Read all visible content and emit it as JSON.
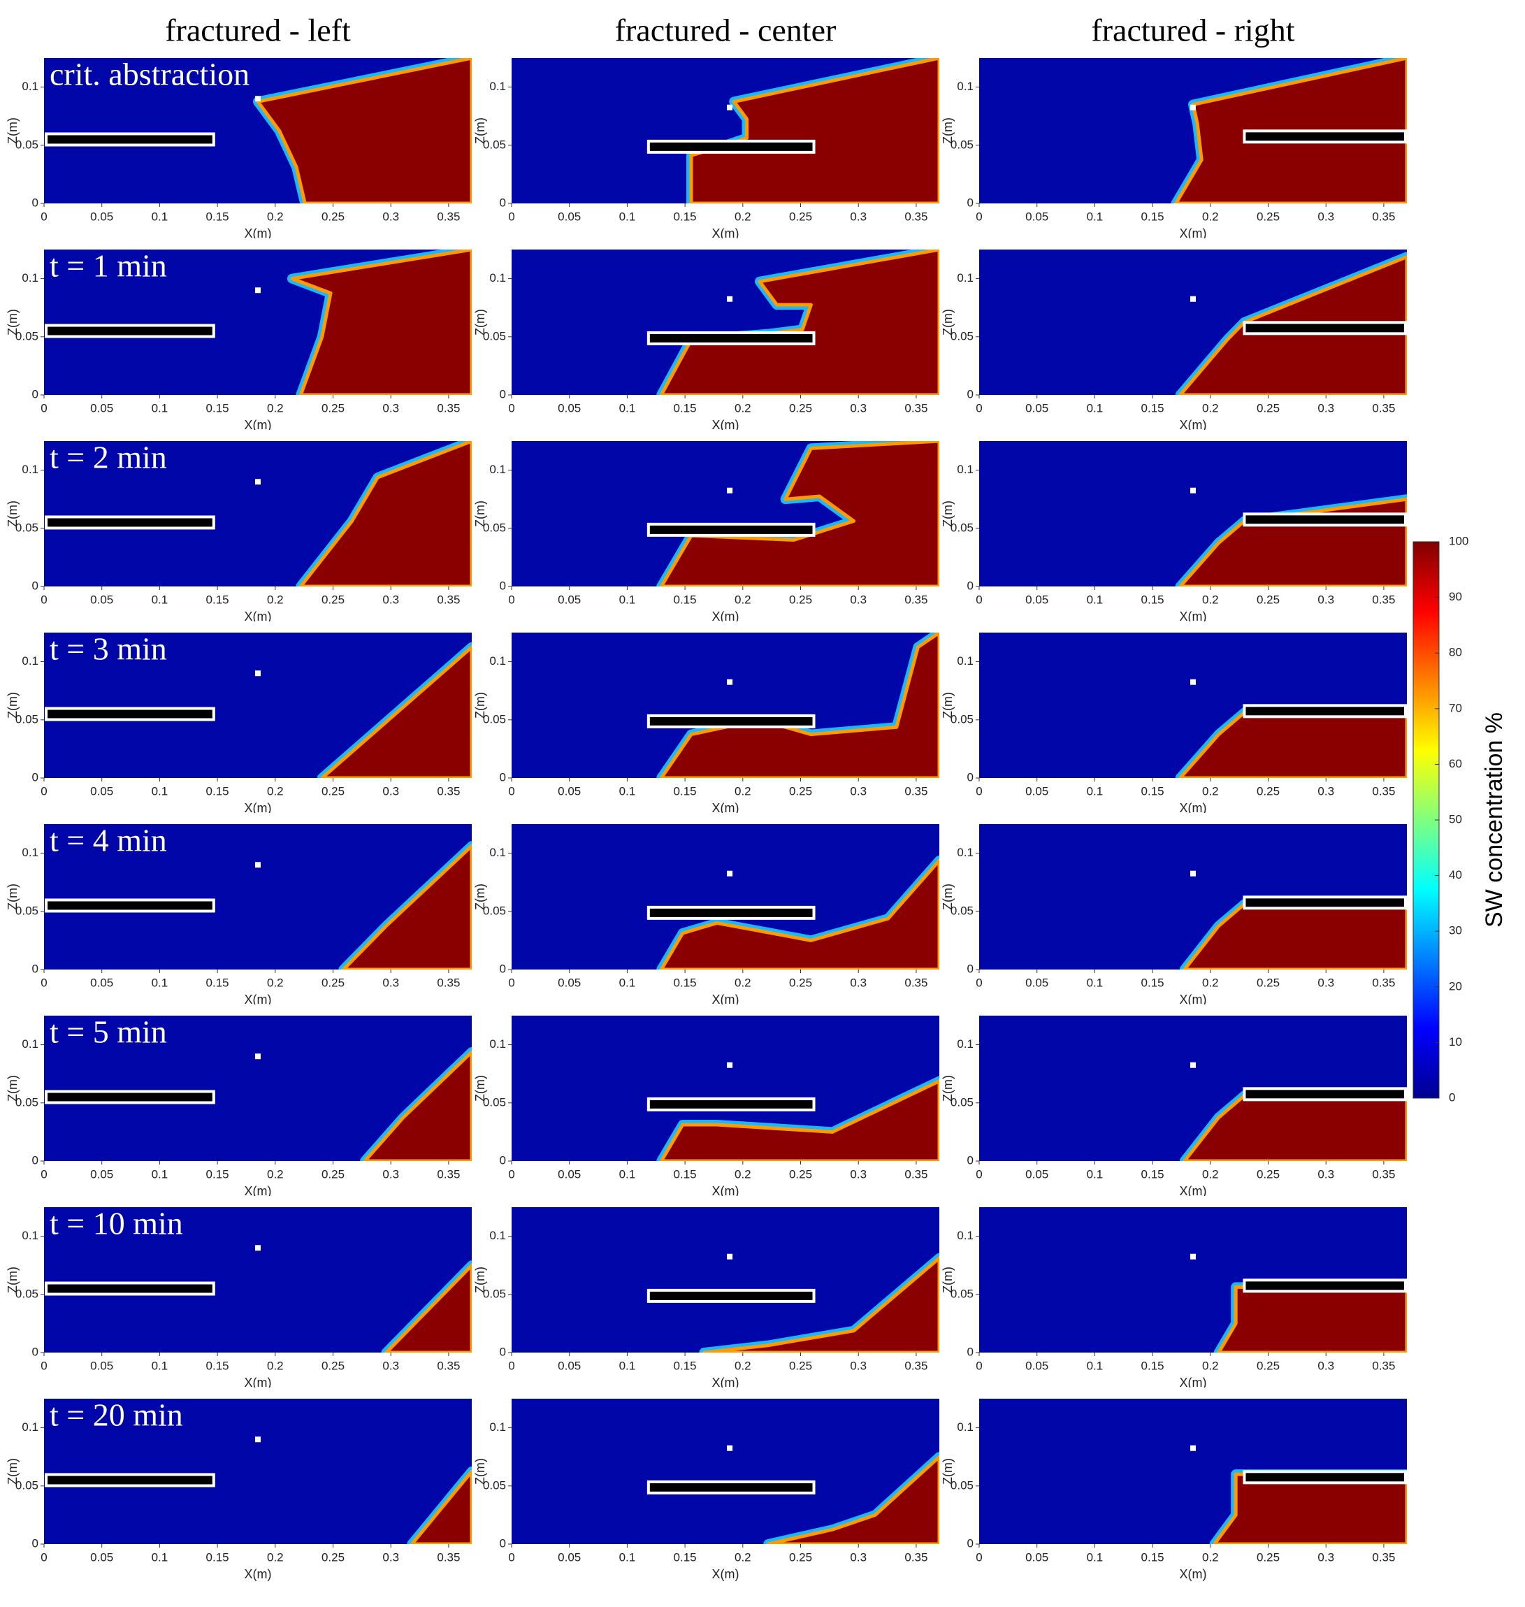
{
  "chart_data": [
    {
      "type": "heatmap",
      "title": "fractured - left",
      "annotation": "crit. abstraction",
      "xlabel": "X(m)",
      "ylabel": "Z(m)",
      "xlim": [
        0,
        0.37
      ],
      "ylim": [
        0,
        0.125
      ],
      "xticks": [
        0,
        0.05,
        0.1,
        0.15,
        0.2,
        0.25,
        0.3,
        0.35
      ],
      "yticks": [
        0,
        0.05,
        0.1
      ]
    },
    {
      "type": "heatmap",
      "title": "fractured - center",
      "xlabel": "X(m)",
      "ylabel": "Z(m)",
      "xlim": [
        0,
        0.37
      ],
      "ylim": [
        0,
        0.125
      ],
      "xticks": [
        0,
        0.05,
        0.1,
        0.15,
        0.2,
        0.25,
        0.3,
        0.35
      ],
      "yticks": [
        0,
        0.05,
        0.1
      ]
    },
    {
      "type": "heatmap",
      "title": "fractured - right",
      "xlabel": "X(m)",
      "ylabel": "Z(m)",
      "xlim": [
        0,
        0.37
      ],
      "ylim": [
        0,
        0.125
      ],
      "xticks": [
        0,
        0.05,
        0.1,
        0.15,
        0.2,
        0.25,
        0.3,
        0.35
      ],
      "yticks": [
        0,
        0.05,
        0.1
      ]
    },
    {
      "type": "heatmap",
      "annotation": "t = 1 min",
      "xlabel": "X(m)",
      "ylabel": "Z(m)",
      "xlim": [
        0,
        0.37
      ],
      "ylim": [
        0,
        0.125
      ],
      "xticks": [
        0,
        0.05,
        0.1,
        0.15,
        0.2,
        0.25,
        0.3,
        0.35
      ],
      "yticks": [
        0,
        0.05,
        0.1
      ]
    },
    {
      "type": "heatmap",
      "xlabel": "X(m)",
      "ylabel": "Z(m)",
      "xlim": [
        0,
        0.37
      ],
      "ylim": [
        0,
        0.125
      ],
      "xticks": [
        0,
        0.05,
        0.1,
        0.15,
        0.2,
        0.25,
        0.3,
        0.35
      ],
      "yticks": [
        0,
        0.05,
        0.1
      ]
    },
    {
      "type": "heatmap",
      "xlabel": "X(m)",
      "ylabel": "Z(m)",
      "xlim": [
        0,
        0.37
      ],
      "ylim": [
        0,
        0.125
      ],
      "xticks": [
        0,
        0.05,
        0.1,
        0.15,
        0.2,
        0.25,
        0.3,
        0.35
      ],
      "yticks": [
        0,
        0.05,
        0.1
      ]
    },
    {
      "type": "heatmap",
      "annotation": "t = 2 min",
      "xlabel": "X(m)",
      "ylabel": "Z(m)",
      "xlim": [
        0,
        0.37
      ],
      "ylim": [
        0,
        0.125
      ],
      "xticks": [
        0,
        0.05,
        0.1,
        0.15,
        0.2,
        0.25,
        0.3,
        0.35
      ],
      "yticks": [
        0,
        0.05,
        0.1
      ]
    },
    {
      "type": "heatmap",
      "xlabel": "X(m)",
      "ylabel": "Z(m)",
      "xlim": [
        0,
        0.37
      ],
      "ylim": [
        0,
        0.125
      ],
      "xticks": [
        0,
        0.05,
        0.1,
        0.15,
        0.2,
        0.25,
        0.3,
        0.35
      ],
      "yticks": [
        0,
        0.05,
        0.1
      ]
    },
    {
      "type": "heatmap",
      "xlabel": "X(m)",
      "ylabel": "Z(m)",
      "xlim": [
        0,
        0.37
      ],
      "ylim": [
        0,
        0.125
      ],
      "xticks": [
        0,
        0.05,
        0.1,
        0.15,
        0.2,
        0.25,
        0.3,
        0.35
      ],
      "yticks": [
        0,
        0.05,
        0.1
      ]
    },
    {
      "type": "heatmap",
      "annotation": "t = 3 min",
      "xlabel": "X(m)",
      "ylabel": "Z(m)",
      "xlim": [
        0,
        0.37
      ],
      "ylim": [
        0,
        0.125
      ],
      "xticks": [
        0,
        0.05,
        0.1,
        0.15,
        0.2,
        0.25,
        0.3,
        0.35
      ],
      "yticks": [
        0,
        0.05,
        0.1
      ]
    },
    {
      "type": "heatmap",
      "xlabel": "X(m)",
      "ylabel": "Z(m)",
      "xlim": [
        0,
        0.37
      ],
      "ylim": [
        0,
        0.125
      ],
      "xticks": [
        0,
        0.05,
        0.1,
        0.15,
        0.2,
        0.25,
        0.3,
        0.35
      ],
      "yticks": [
        0,
        0.05,
        0.1
      ]
    },
    {
      "type": "heatmap",
      "xlabel": "X(m)",
      "ylabel": "Z(m)",
      "xlim": [
        0,
        0.37
      ],
      "ylim": [
        0,
        0.125
      ],
      "xticks": [
        0,
        0.05,
        0.1,
        0.15,
        0.2,
        0.25,
        0.3,
        0.35
      ],
      "yticks": [
        0,
        0.05,
        0.1
      ]
    },
    {
      "type": "heatmap",
      "annotation": "t = 4 min",
      "xlabel": "X(m)",
      "ylabel": "Z(m)",
      "xlim": [
        0,
        0.37
      ],
      "ylim": [
        0,
        0.125
      ],
      "xticks": [
        0,
        0.05,
        0.1,
        0.15,
        0.2,
        0.25,
        0.3,
        0.35
      ],
      "yticks": [
        0,
        0.05,
        0.1
      ]
    },
    {
      "type": "heatmap",
      "xlabel": "X(m)",
      "ylabel": "Z(m)",
      "xlim": [
        0,
        0.37
      ],
      "ylim": [
        0,
        0.125
      ],
      "xticks": [
        0,
        0.05,
        0.1,
        0.15,
        0.2,
        0.25,
        0.3,
        0.35
      ],
      "yticks": [
        0,
        0.05,
        0.1
      ]
    },
    {
      "type": "heatmap",
      "xlabel": "X(m)",
      "ylabel": "Z(m)",
      "xlim": [
        0,
        0.37
      ],
      "ylim": [
        0,
        0.125
      ],
      "xticks": [
        0,
        0.05,
        0.1,
        0.15,
        0.2,
        0.25,
        0.3,
        0.35
      ],
      "yticks": [
        0,
        0.05,
        0.1
      ]
    },
    {
      "type": "heatmap",
      "annotation": "t = 5 min",
      "xlabel": "X(m)",
      "ylabel": "Z(m)",
      "xlim": [
        0,
        0.37
      ],
      "ylim": [
        0,
        0.125
      ],
      "xticks": [
        0,
        0.05,
        0.1,
        0.15,
        0.2,
        0.25,
        0.3,
        0.35
      ],
      "yticks": [
        0,
        0.05,
        0.1
      ]
    },
    {
      "type": "heatmap",
      "xlabel": "X(m)",
      "ylabel": "Z(m)",
      "xlim": [
        0,
        0.37
      ],
      "ylim": [
        0,
        0.125
      ],
      "xticks": [
        0,
        0.05,
        0.1,
        0.15,
        0.2,
        0.25,
        0.3,
        0.35
      ],
      "yticks": [
        0,
        0.05,
        0.1
      ]
    },
    {
      "type": "heatmap",
      "xlabel": "X(m)",
      "ylabel": "Z(m)",
      "xlim": [
        0,
        0.37
      ],
      "ylim": [
        0,
        0.125
      ],
      "xticks": [
        0,
        0.05,
        0.1,
        0.15,
        0.2,
        0.25,
        0.3,
        0.35
      ],
      "yticks": [
        0,
        0.05,
        0.1
      ]
    },
    {
      "type": "heatmap",
      "annotation": "t = 10 min",
      "xlabel": "X(m)",
      "ylabel": "Z(m)",
      "xlim": [
        0,
        0.37
      ],
      "ylim": [
        0,
        0.125
      ],
      "xticks": [
        0,
        0.05,
        0.1,
        0.15,
        0.2,
        0.25,
        0.3,
        0.35
      ],
      "yticks": [
        0,
        0.05,
        0.1
      ]
    },
    {
      "type": "heatmap",
      "xlabel": "X(m)",
      "ylabel": "Z(m)",
      "xlim": [
        0,
        0.37
      ],
      "ylim": [
        0,
        0.125
      ],
      "xticks": [
        0,
        0.05,
        0.1,
        0.15,
        0.2,
        0.25,
        0.3,
        0.35
      ],
      "yticks": [
        0,
        0.05,
        0.1
      ]
    },
    {
      "type": "heatmap",
      "xlabel": "X(m)",
      "ylabel": "Z(m)",
      "xlim": [
        0,
        0.37
      ],
      "ylim": [
        0,
        0.125
      ],
      "xticks": [
        0,
        0.05,
        0.1,
        0.15,
        0.2,
        0.25,
        0.3,
        0.35
      ],
      "yticks": [
        0,
        0.05,
        0.1
      ]
    },
    {
      "type": "heatmap",
      "annotation": "t = 20 min",
      "xlabel": "X(m)",
      "ylabel": "Z(m)",
      "xlim": [
        0,
        0.37
      ],
      "ylim": [
        0,
        0.125
      ],
      "xticks": [
        0,
        0.05,
        0.1,
        0.15,
        0.2,
        0.25,
        0.3,
        0.35
      ],
      "yticks": [
        0,
        0.05,
        0.1
      ]
    },
    {
      "type": "heatmap",
      "xlabel": "X(m)",
      "ylabel": "Z(m)",
      "xlim": [
        0,
        0.37
      ],
      "ylim": [
        0,
        0.125
      ],
      "xticks": [
        0,
        0.05,
        0.1,
        0.15,
        0.2,
        0.25,
        0.3,
        0.35
      ],
      "yticks": [
        0,
        0.05,
        0.1
      ]
    },
    {
      "type": "heatmap",
      "xlabel": "X(m)",
      "ylabel": "Z(m)",
      "xlim": [
        0,
        0.37
      ],
      "ylim": [
        0,
        0.125
      ],
      "xticks": [
        0,
        0.05,
        0.1,
        0.15,
        0.2,
        0.25,
        0.3,
        0.35
      ],
      "yticks": [
        0,
        0.05,
        0.1
      ]
    },
    {
      "type": "colorbar",
      "label": "SW concentration %",
      "lim": [
        0,
        100
      ],
      "ticks": [
        0,
        10,
        20,
        30,
        40,
        50,
        60,
        70,
        80,
        90,
        100
      ]
    }
  ]
}
